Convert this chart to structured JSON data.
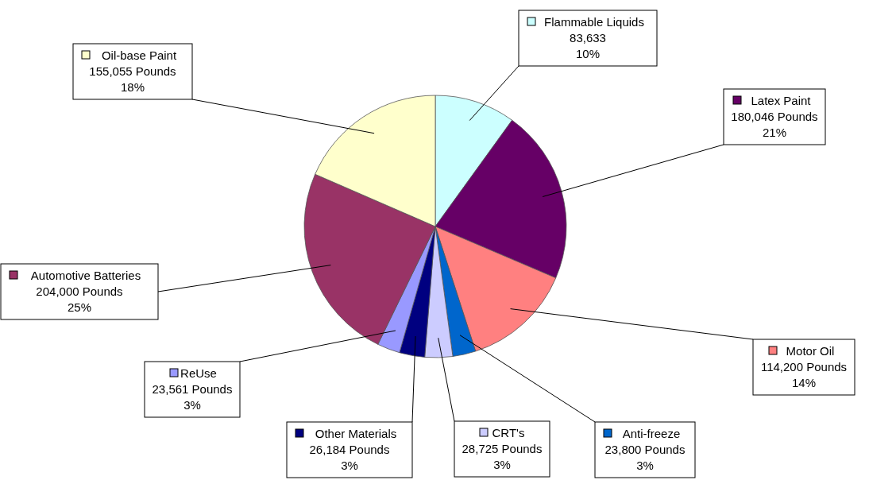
{
  "chart_data": {
    "type": "pie",
    "categories": [
      "Flammable Liquids",
      "Latex Paint",
      "Motor Oil",
      "Anti-freeze",
      "CRT's",
      "Other Materials",
      "ReUse",
      "Automotive Batteries",
      "Oil-base Paint"
    ],
    "values": [
      83633,
      180046,
      114200,
      23800,
      28725,
      26184,
      23561,
      204000,
      155055
    ],
    "legend": "bottom left",
    "colors": [
      "#ccffff",
      "#660066",
      "#ff8080",
      "#0066cc",
      "#ccccff",
      "#000080",
      "#9999ff",
      "#993366",
      "#ffffcc"
    ],
    "value_labels": [
      "83,633\n10%",
      "180,046 Pounds\n21%",
      "114,200 Pounds\n14%",
      "23,800 Pounds\n3%",
      "28,725 Pounds\n3%",
      "26,184 Pounds\n3%",
      "23,561 Pounds\n3%",
      "204,000 Pounds\n25%",
      "155,055 Pounds\n18%"
    ]
  }
}
